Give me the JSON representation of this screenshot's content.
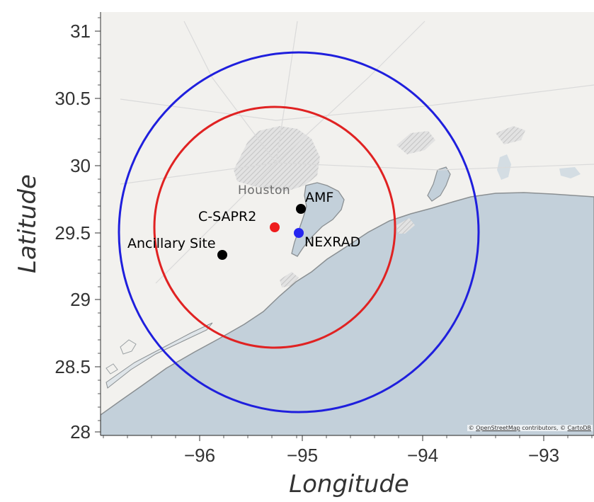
{
  "map": {
    "place_label": "Houston",
    "attribution": {
      "prefix": "© ",
      "osm_link": "OpenStreetMap",
      "middle": " contributors, © ",
      "carto_link": "CartoDB"
    },
    "xlabel": "Longitude",
    "ylabel": "Latitude",
    "xticks": [
      "−96",
      "−95",
      "−94",
      "−93"
    ],
    "yticks": [
      "31",
      "30.5",
      "30",
      "29.5",
      "29",
      "28.5",
      "28"
    ],
    "xlim": [
      -96.8,
      -92.8
    ],
    "ylim": [
      27.95,
      31.15
    ],
    "colors": {
      "land": "#f2f1ee",
      "water": "#c3d0da",
      "coastline": "#8a8f92",
      "outer_ring": "#1f1fdd",
      "inner_ring": "#e02222",
      "csapr2": "#ee1c1c",
      "nexrad": "#2525f0",
      "site": "#000000"
    },
    "sites": [
      {
        "name": "AMF",
        "lon": -95.06,
        "lat": 29.67,
        "color": "#000000"
      },
      {
        "name": "C-SAPR2",
        "lon": -95.28,
        "lat": 29.52,
        "color": "#ee1c1c"
      },
      {
        "name": "NEXRAD",
        "lon": -95.08,
        "lat": 29.47,
        "color": "#2525f0"
      },
      {
        "name": "Ancillary Site",
        "lon": -95.74,
        "lat": 29.32,
        "color": "#000000"
      }
    ],
    "rings": [
      {
        "name": "outer",
        "center_lon": -95.08,
        "center_lat": 29.47,
        "color": "#1f1fdd"
      },
      {
        "name": "inner",
        "center_lon": -95.28,
        "center_lat": 29.52,
        "color": "#e02222"
      }
    ]
  }
}
